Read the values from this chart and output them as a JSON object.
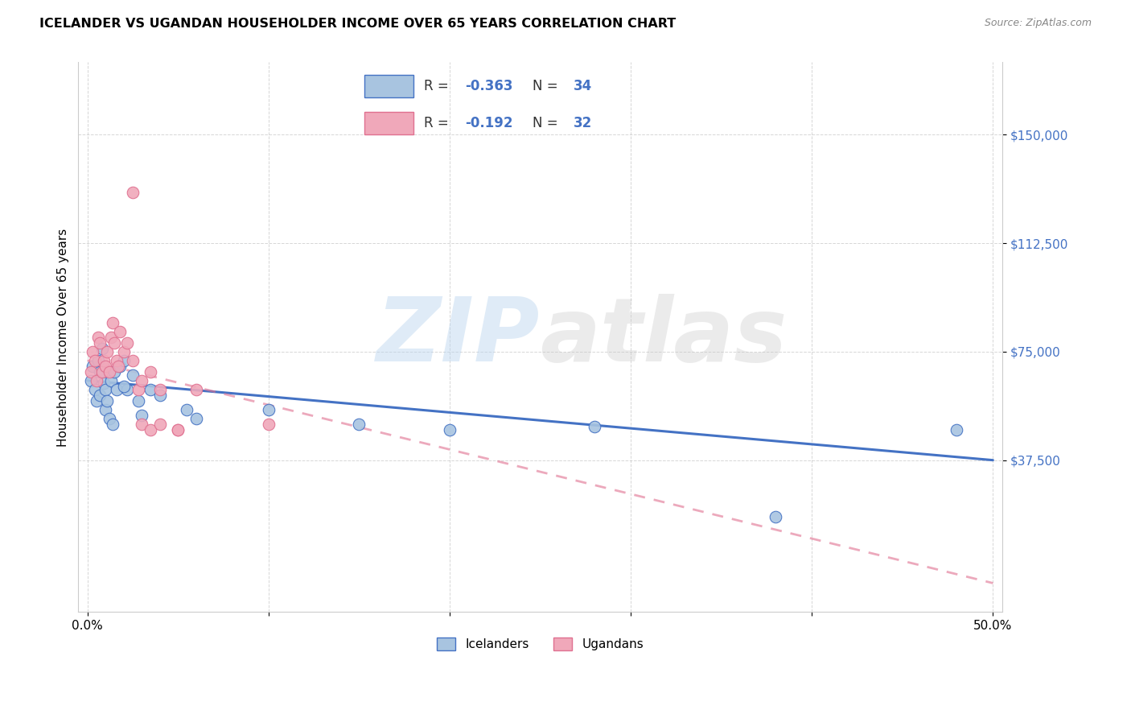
{
  "title": "ICELANDER VS UGANDAN HOUSEHOLDER INCOME OVER 65 YEARS CORRELATION CHART",
  "source": "Source: ZipAtlas.com",
  "ylabel": "Householder Income Over 65 years",
  "watermark_zip": "ZIP",
  "watermark_atlas": "atlas",
  "legend_icelander": "Icelanders",
  "legend_ugandan": "Ugandans",
  "r_icelander": "-0.363",
  "n_icelander": "34",
  "r_ugandan": "-0.192",
  "n_ugandan": "32",
  "color_icelander": "#A8C4E0",
  "color_ugandan": "#F0A8BA",
  "line_color_icelander": "#4472C4",
  "line_color_ugandan": "#E07090",
  "yticks": [
    37500,
    75000,
    112500,
    150000
  ],
  "ytick_labels": [
    "$37,500",
    "$75,000",
    "$112,500",
    "$150,000"
  ],
  "icelander_x": [
    0.002,
    0.003,
    0.004,
    0.005,
    0.006,
    0.007,
    0.007,
    0.008,
    0.009,
    0.01,
    0.01,
    0.011,
    0.012,
    0.013,
    0.014,
    0.015,
    0.016,
    0.018,
    0.02,
    0.022,
    0.025,
    0.028,
    0.03,
    0.035,
    0.04,
    0.055,
    0.06,
    0.1,
    0.15,
    0.2,
    0.28,
    0.38,
    0.48,
    0.02
  ],
  "icelander_y": [
    65000,
    70000,
    62000,
    58000,
    72000,
    60000,
    68000,
    76000,
    64000,
    62000,
    55000,
    58000,
    52000,
    65000,
    50000,
    68000,
    62000,
    70000,
    72000,
    62000,
    67000,
    58000,
    53000,
    62000,
    60000,
    55000,
    52000,
    55000,
    50000,
    48000,
    49000,
    18000,
    48000,
    63000
  ],
  "ugandan_x": [
    0.002,
    0.003,
    0.004,
    0.005,
    0.006,
    0.007,
    0.008,
    0.009,
    0.01,
    0.011,
    0.012,
    0.013,
    0.014,
    0.015,
    0.016,
    0.017,
    0.018,
    0.02,
    0.022,
    0.025,
    0.028,
    0.03,
    0.035,
    0.04,
    0.05,
    0.06,
    0.03,
    0.035,
    0.04,
    0.05,
    0.1,
    0.025
  ],
  "ugandan_y": [
    68000,
    75000,
    72000,
    65000,
    80000,
    78000,
    68000,
    72000,
    70000,
    75000,
    68000,
    80000,
    85000,
    78000,
    72000,
    70000,
    82000,
    75000,
    78000,
    72000,
    62000,
    65000,
    68000,
    62000,
    48000,
    62000,
    50000,
    48000,
    50000,
    48000,
    50000,
    130000
  ]
}
